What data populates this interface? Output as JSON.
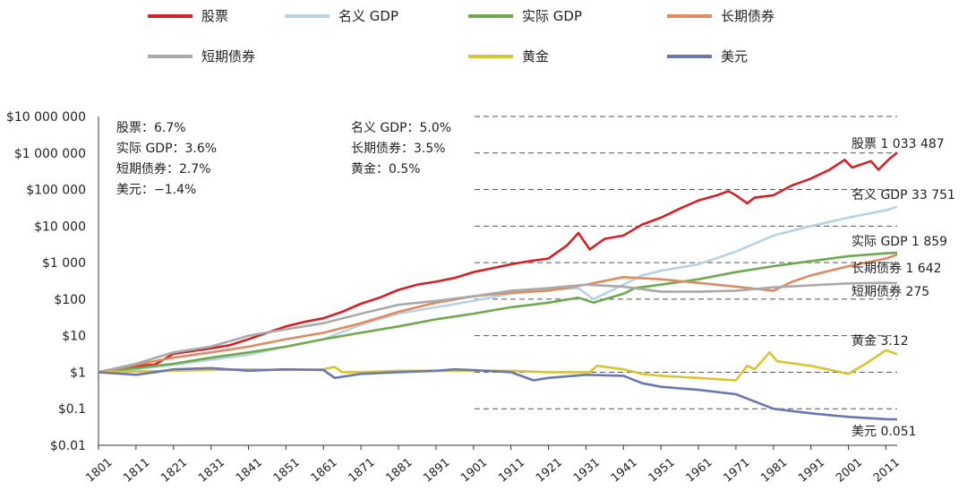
{
  "chart_data": {
    "type": "line",
    "y_scale": "log",
    "ylim": [
      0.01,
      10000000
    ],
    "xlim": [
      1801,
      2014
    ],
    "x_ticks": [
      1801,
      1811,
      1821,
      1831,
      1841,
      1851,
      1861,
      1871,
      1881,
      1891,
      1901,
      1911,
      1921,
      1931,
      1941,
      1951,
      1961,
      1971,
      1981,
      1991,
      2001,
      2011
    ],
    "y_ticks": [
      {
        "value": 10000000,
        "label": "$10 000 000"
      },
      {
        "value": 1000000,
        "label": "$1 000 000"
      },
      {
        "value": 100000,
        "label": "$100 000"
      },
      {
        "value": 10000,
        "label": "$10 000"
      },
      {
        "value": 1000,
        "label": "$1 000"
      },
      {
        "value": 100,
        "label": "$100"
      },
      {
        "value": 10,
        "label": "$10"
      },
      {
        "value": 1,
        "label": "$1"
      },
      {
        "value": 0.1,
        "label": "$0.1"
      },
      {
        "value": 0.01,
        "label": "$0.01"
      }
    ],
    "grid": "horizontal dashed",
    "legend_placement": "top",
    "stats": [
      [
        "股票：6.7%",
        "实际 GDP：3.6%",
        "短期债券：2.7%",
        "美元：−1.4%"
      ],
      [
        "名义 GDP：5.0%",
        "长期债券：3.5%",
        "黄金：0.5%"
      ]
    ],
    "series": [
      {
        "name": "股票",
        "color": "#d42027",
        "end_label": "股票 1 033 487",
        "points": [
          [
            1801,
            1
          ],
          [
            1806,
            1.3
          ],
          [
            1811,
            1.5
          ],
          [
            1816,
            1.6
          ],
          [
            1821,
            3.2
          ],
          [
            1826,
            3.8
          ],
          [
            1831,
            4.5
          ],
          [
            1836,
            5.5
          ],
          [
            1841,
            8
          ],
          [
            1846,
            12
          ],
          [
            1851,
            18
          ],
          [
            1856,
            24
          ],
          [
            1861,
            30
          ],
          [
            1866,
            45
          ],
          [
            1871,
            75
          ],
          [
            1876,
            110
          ],
          [
            1881,
            180
          ],
          [
            1886,
            250
          ],
          [
            1891,
            300
          ],
          [
            1896,
            380
          ],
          [
            1901,
            550
          ],
          [
            1906,
            700
          ],
          [
            1911,
            900
          ],
          [
            1916,
            1100
          ],
          [
            1921,
            1300
          ],
          [
            1926,
            3000
          ],
          [
            1929,
            6500
          ],
          [
            1932,
            2300
          ],
          [
            1936,
            4500
          ],
          [
            1941,
            5500
          ],
          [
            1946,
            11000
          ],
          [
            1951,
            17000
          ],
          [
            1956,
            30000
          ],
          [
            1961,
            50000
          ],
          [
            1966,
            70000
          ],
          [
            1969,
            90000
          ],
          [
            1971,
            70000
          ],
          [
            1974,
            42000
          ],
          [
            1976,
            60000
          ],
          [
            1981,
            70000
          ],
          [
            1986,
            130000
          ],
          [
            1991,
            200000
          ],
          [
            1996,
            350000
          ],
          [
            2000,
            650000
          ],
          [
            2002,
            400000
          ],
          [
            2007,
            600000
          ],
          [
            2009,
            350000
          ],
          [
            2012,
            700000
          ],
          [
            2014,
            1033487
          ]
        ]
      },
      {
        "name": "名义 GDP",
        "color": "#b7d3e3",
        "end_label": "名义 GDP 33 751",
        "points": [
          [
            1801,
            1
          ],
          [
            1811,
            1.2
          ],
          [
            1821,
            1.6
          ],
          [
            1831,
            2.2
          ],
          [
            1841,
            3
          ],
          [
            1851,
            5
          ],
          [
            1861,
            8
          ],
          [
            1871,
            20
          ],
          [
            1881,
            40
          ],
          [
            1891,
            60
          ],
          [
            1901,
            90
          ],
          [
            1911,
            140
          ],
          [
            1921,
            180
          ],
          [
            1929,
            200
          ],
          [
            1933,
            100
          ],
          [
            1941,
            250
          ],
          [
            1946,
            450
          ],
          [
            1951,
            600
          ],
          [
            1961,
            900
          ],
          [
            1971,
            2000
          ],
          [
            1981,
            5500
          ],
          [
            1991,
            10000
          ],
          [
            2001,
            17000
          ],
          [
            2011,
            27000
          ],
          [
            2014,
            33751
          ]
        ]
      },
      {
        "name": "实际 GDP",
        "color": "#6ea94d",
        "end_label": "实际 GDP 1 859",
        "points": [
          [
            1801,
            1
          ],
          [
            1811,
            1.3
          ],
          [
            1821,
            1.7
          ],
          [
            1831,
            2.5
          ],
          [
            1841,
            3.5
          ],
          [
            1851,
            5
          ],
          [
            1861,
            8
          ],
          [
            1871,
            12
          ],
          [
            1881,
            18
          ],
          [
            1891,
            28
          ],
          [
            1901,
            40
          ],
          [
            1911,
            60
          ],
          [
            1921,
            80
          ],
          [
            1929,
            110
          ],
          [
            1933,
            80
          ],
          [
            1941,
            140
          ],
          [
            1944,
            200
          ],
          [
            1951,
            250
          ],
          [
            1961,
            350
          ],
          [
            1971,
            550
          ],
          [
            1981,
            800
          ],
          [
            1991,
            1100
          ],
          [
            2001,
            1500
          ],
          [
            2011,
            1800
          ],
          [
            2014,
            1859
          ]
        ]
      },
      {
        "name": "长期债券",
        "color": "#de8a62",
        "end_label": "长期债券 1 642",
        "points": [
          [
            1801,
            1
          ],
          [
            1811,
            1.6
          ],
          [
            1821,
            2.5
          ],
          [
            1831,
            3.5
          ],
          [
            1841,
            5
          ],
          [
            1851,
            8
          ],
          [
            1861,
            12
          ],
          [
            1871,
            22
          ],
          [
            1881,
            45
          ],
          [
            1891,
            80
          ],
          [
            1901,
            120
          ],
          [
            1911,
            150
          ],
          [
            1921,
            170
          ],
          [
            1931,
            250
          ],
          [
            1941,
            400
          ],
          [
            1951,
            350
          ],
          [
            1961,
            280
          ],
          [
            1971,
            220
          ],
          [
            1981,
            170
          ],
          [
            1986,
            300
          ],
          [
            1991,
            450
          ],
          [
            2001,
            800
          ],
          [
            2011,
            1300
          ],
          [
            2014,
            1642
          ]
        ]
      },
      {
        "name": "短期债券",
        "color": "#a9a9a9",
        "end_label": "短期债券 275",
        "points": [
          [
            1801,
            1
          ],
          [
            1811,
            1.7
          ],
          [
            1821,
            3.5
          ],
          [
            1831,
            5
          ],
          [
            1841,
            10
          ],
          [
            1851,
            15
          ],
          [
            1861,
            22
          ],
          [
            1871,
            40
          ],
          [
            1881,
            70
          ],
          [
            1891,
            90
          ],
          [
            1901,
            120
          ],
          [
            1911,
            170
          ],
          [
            1921,
            200
          ],
          [
            1931,
            250
          ],
          [
            1941,
            220
          ],
          [
            1951,
            160
          ],
          [
            1961,
            160
          ],
          [
            1971,
            170
          ],
          [
            1981,
            210
          ],
          [
            1991,
            240
          ],
          [
            2001,
            270
          ],
          [
            2011,
            280
          ],
          [
            2014,
            275
          ]
        ]
      },
      {
        "name": "黄金",
        "color": "#d8c435",
        "end_label": "黄金 3.12",
        "points": [
          [
            1801,
            1
          ],
          [
            1811,
            1.05
          ],
          [
            1821,
            1.1
          ],
          [
            1831,
            1.15
          ],
          [
            1841,
            1.2
          ],
          [
            1851,
            1.15
          ],
          [
            1861,
            1.2
          ],
          [
            1864,
            1.4
          ],
          [
            1866,
            1.0
          ],
          [
            1871,
            1.0
          ],
          [
            1881,
            1.1
          ],
          [
            1891,
            1.1
          ],
          [
            1901,
            1.1
          ],
          [
            1911,
            1.1
          ],
          [
            1921,
            1.0
          ],
          [
            1932,
            1.0
          ],
          [
            1934,
            1.5
          ],
          [
            1941,
            1.2
          ],
          [
            1946,
            0.9
          ],
          [
            1951,
            0.8
          ],
          [
            1961,
            0.7
          ],
          [
            1971,
            0.6
          ],
          [
            1974,
            1.5
          ],
          [
            1976,
            1.2
          ],
          [
            1980,
            3.5
          ],
          [
            1982,
            2.0
          ],
          [
            1991,
            1.5
          ],
          [
            1999,
            1.0
          ],
          [
            2001,
            0.9
          ],
          [
            2006,
            1.8
          ],
          [
            2011,
            4.0
          ],
          [
            2014,
            3.12
          ]
        ]
      },
      {
        "name": "美元",
        "color": "#6a77b2",
        "end_label": "美元 0.051",
        "points": [
          [
            1801,
            1
          ],
          [
            1811,
            0.85
          ],
          [
            1816,
            1.0
          ],
          [
            1821,
            1.2
          ],
          [
            1831,
            1.3
          ],
          [
            1841,
            1.1
          ],
          [
            1851,
            1.2
          ],
          [
            1861,
            1.15
          ],
          [
            1864,
            0.7
          ],
          [
            1871,
            0.9
          ],
          [
            1881,
            1.0
          ],
          [
            1891,
            1.1
          ],
          [
            1896,
            1.2
          ],
          [
            1901,
            1.15
          ],
          [
            1911,
            1.0
          ],
          [
            1917,
            0.6
          ],
          [
            1921,
            0.7
          ],
          [
            1931,
            0.85
          ],
          [
            1941,
            0.8
          ],
          [
            1946,
            0.5
          ],
          [
            1951,
            0.4
          ],
          [
            1961,
            0.33
          ],
          [
            1971,
            0.25
          ],
          [
            1981,
            0.1
          ],
          [
            1991,
            0.075
          ],
          [
            2001,
            0.06
          ],
          [
            2011,
            0.052
          ],
          [
            2014,
            0.051
          ]
        ]
      }
    ]
  }
}
